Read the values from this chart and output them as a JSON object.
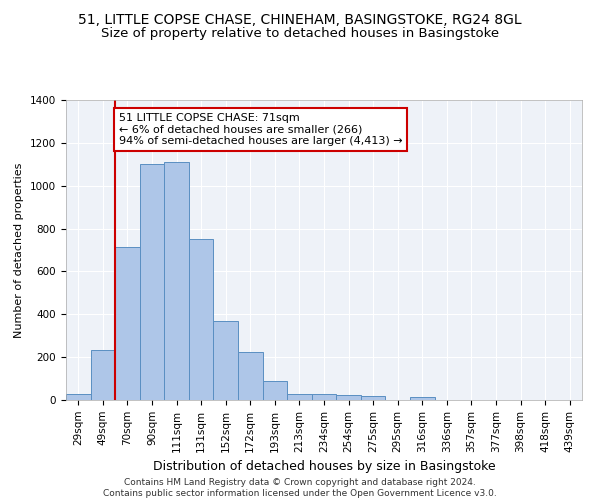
{
  "title": "51, LITTLE COPSE CHASE, CHINEHAM, BASINGSTOKE, RG24 8GL",
  "subtitle": "Size of property relative to detached houses in Basingstoke",
  "xlabel": "Distribution of detached houses by size in Basingstoke",
  "ylabel": "Number of detached properties",
  "categories": [
    "29sqm",
    "49sqm",
    "70sqm",
    "90sqm",
    "111sqm",
    "131sqm",
    "152sqm",
    "172sqm",
    "193sqm",
    "213sqm",
    "234sqm",
    "254sqm",
    "275sqm",
    "295sqm",
    "316sqm",
    "336sqm",
    "357sqm",
    "377sqm",
    "398sqm",
    "418sqm",
    "439sqm"
  ],
  "values": [
    30,
    235,
    715,
    1100,
    1110,
    750,
    370,
    225,
    90,
    30,
    28,
    22,
    18,
    0,
    12,
    0,
    0,
    0,
    0,
    0,
    0
  ],
  "bar_color": "#aec6e8",
  "bar_edge_color": "#5a8fc2",
  "vline_index": 2,
  "vline_color": "#cc0000",
  "annotation_text": "51 LITTLE COPSE CHASE: 71sqm\n← 6% of detached houses are smaller (266)\n94% of semi-detached houses are larger (4,413) →",
  "annotation_box_color": "#cc0000",
  "ylim": [
    0,
    1400
  ],
  "yticks": [
    0,
    200,
    400,
    600,
    800,
    1000,
    1200,
    1400
  ],
  "bg_color": "#eef2f8",
  "footnote": "Contains HM Land Registry data © Crown copyright and database right 2024.\nContains public sector information licensed under the Open Government Licence v3.0.",
  "title_fontsize": 10,
  "subtitle_fontsize": 9.5,
  "xlabel_fontsize": 9,
  "ylabel_fontsize": 8,
  "tick_fontsize": 7.5,
  "annotation_fontsize": 8,
  "footnote_fontsize": 6.5
}
